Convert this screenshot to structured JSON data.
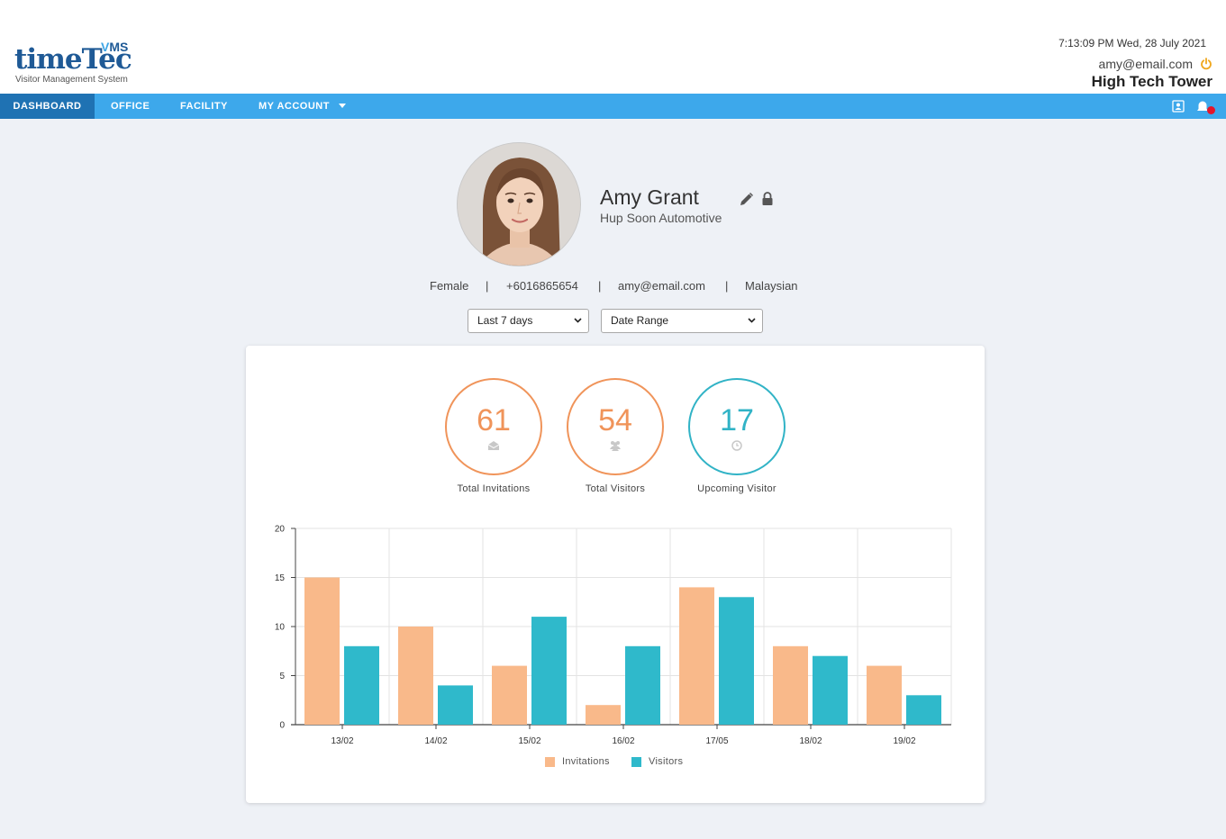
{
  "header": {
    "logo_brand_time": "time",
    "logo_brand_tec": "Tec",
    "logo_vms_v": "V",
    "logo_vms_ms": "MS",
    "logo_tagline": "Visitor Management System",
    "datetime": "7:13:09 PM  Wed, 28 July 2021",
    "email": "amy@email.com",
    "building": "High Tech Tower",
    "power_icon": "power-icon"
  },
  "nav": {
    "items": [
      {
        "label": "DASHBOARD",
        "active": true
      },
      {
        "label": "OFFICE",
        "active": false
      },
      {
        "label": "FACILITY",
        "active": false
      },
      {
        "label": "MY ACCOUNT",
        "active": false,
        "has_dropdown": true
      }
    ],
    "right_icons": [
      "contact-card-icon",
      "notification-icon"
    ]
  },
  "profile": {
    "name": "Amy Grant",
    "company": "Hup Soon Automotive",
    "gender": "Female",
    "phone": "+6016865654",
    "email": "amy@email.com",
    "nationality": "Malaysian",
    "separator": "|"
  },
  "filters": {
    "period": "Last 7 days",
    "range": "Date Range"
  },
  "stats": [
    {
      "value": "61",
      "label": "Total Invitations",
      "color": "#f0945a",
      "icon": "envelope-open-icon"
    },
    {
      "value": "54",
      "label": "Total Visitors",
      "color": "#f0945a",
      "icon": "users-icon"
    },
    {
      "value": "17",
      "label": "Upcoming Visitor",
      "color": "#31b3c6",
      "icon": "clock-icon"
    }
  ],
  "colors": {
    "invitations": "#f9b98a",
    "visitors": "#2fb9cb",
    "nav": "#3da8eb",
    "nav_active": "#1f72b3"
  },
  "chart_data": {
    "type": "bar",
    "categories": [
      "13/02",
      "14/02",
      "15/02",
      "16/02",
      "17/05",
      "18/02",
      "19/02"
    ],
    "series": [
      {
        "name": "Invitations",
        "values": [
          15,
          10,
          6,
          2,
          14,
          8,
          6
        ]
      },
      {
        "name": "Visitors",
        "values": [
          8,
          4,
          11,
          8,
          13,
          7,
          3
        ]
      }
    ],
    "ylim": [
      0,
      20
    ],
    "yticks": [
      0,
      5,
      10,
      15,
      20
    ],
    "grid": true,
    "legend": "bottom"
  }
}
